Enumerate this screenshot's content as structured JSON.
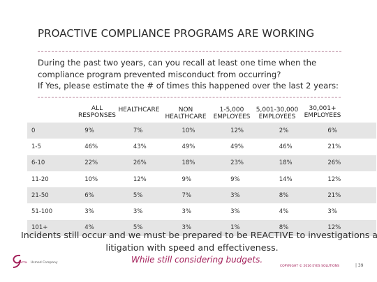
{
  "title": "PROACTIVE COMPLIANCE PROGRAMS ARE WORKING",
  "question": {
    "line1": "During the past two years, can you recall at least one time when the",
    "line2": "compliance program prevented misconduct from occurring?",
    "line3": "If Yes, please estimate the # of times this happened over the last 2 years:"
  },
  "columns": {
    "all_line1": "ALL",
    "all_line2": "RESPONSES",
    "healthcare": "HEALTHCARE",
    "non_line1": "NON",
    "non_line2": "HEALTHCARE",
    "emp1_line1": "1-5,000",
    "emp1_line2": "EMPLOYEES",
    "emp2_line1": "5,001-30,000",
    "emp2_line2": "EMPLOYEES",
    "emp3_line1": "30,001+",
    "emp3_line2": "EMPLOYEES"
  },
  "rows": [
    {
      "label": "0",
      "values": [
        "9%",
        "7%",
        "10%",
        "12%",
        "2%",
        "6%"
      ]
    },
    {
      "label": "1-5",
      "values": [
        "46%",
        "43%",
        "49%",
        "49%",
        "46%",
        "21%"
      ]
    },
    {
      "label": "6-10",
      "values": [
        "22%",
        "26%",
        "18%",
        "23%",
        "18%",
        "26%"
      ]
    },
    {
      "label": "11-20",
      "values": [
        "10%",
        "12%",
        "9%",
        "9%",
        "14%",
        "12%"
      ]
    },
    {
      "label": "21-50",
      "values": [
        "6%",
        "5%",
        "7%",
        "3%",
        "8%",
        "21%"
      ]
    },
    {
      "label": "51-100",
      "values": [
        "3%",
        "3%",
        "3%",
        "3%",
        "4%",
        "3%"
      ]
    },
    {
      "label": "101+",
      "values": [
        "4%",
        "5%",
        "3%",
        "1%",
        "8%",
        "12%"
      ]
    }
  ],
  "footer": {
    "line1": "Incidents still occur and we must be prepared to be REACTIVE to investigations and",
    "line2": "litigation with speed and effectiveness.",
    "italic": "While still considering budgets.",
    "logo_tag": "Usmed Company",
    "copyright": "COPYRIGHT © 2016 EYES SOLUTIONS",
    "page": "| 39"
  },
  "colors": {
    "accent": "#a3205a",
    "dash": "#b48096",
    "row_shade": "#e5e5e5"
  }
}
